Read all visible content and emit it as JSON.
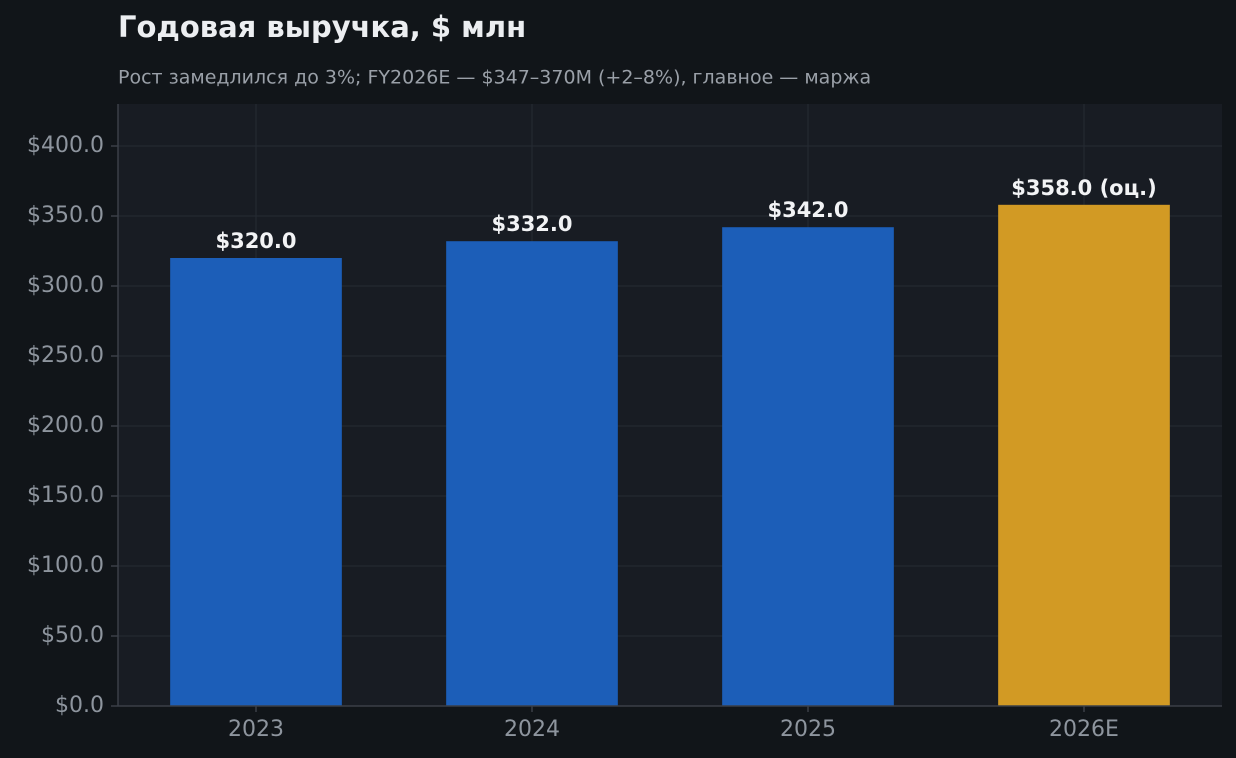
{
  "chart_data": {
    "type": "bar",
    "title": "Годовая выручка, $ млн",
    "subtitle": "Рост замедлился до 3%; FY2026E — $347–370M (+2–8%), главное — маржа",
    "categories": [
      "2023",
      "2024",
      "2025",
      "2026E"
    ],
    "values": [
      320,
      332,
      342,
      358
    ],
    "value_labels": [
      "$320.0",
      "$332.0",
      "$342.0",
      "$358.0 (оц.)"
    ],
    "colors": [
      "#1c5eb8",
      "#1c5eb8",
      "#1c5eb8",
      "#d29a24"
    ],
    "ylim": [
      0,
      430
    ],
    "yticks": [
      {
        "value": 0,
        "label": "$0.0"
      },
      {
        "value": 50,
        "label": "$50.0"
      },
      {
        "value": 100,
        "label": "$100.0"
      },
      {
        "value": 150,
        "label": "$150.0"
      },
      {
        "value": 200,
        "label": "$200.0"
      },
      {
        "value": 250,
        "label": "$250.0"
      },
      {
        "value": 300,
        "label": "$300.0"
      },
      {
        "value": 350,
        "label": "$350.0"
      },
      {
        "value": 400,
        "label": "$400.0"
      }
    ],
    "grid": true
  }
}
